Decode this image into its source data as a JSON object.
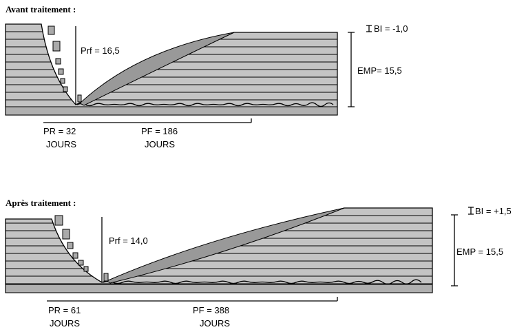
{
  "panels": [
    {
      "title": "Avant traitement :",
      "prf": "Prf = 16,5",
      "bi": "BI = -1,0",
      "emp": "EMP= 15,5",
      "pr": {
        "label": "PR  = 32",
        "unit": "JOURS"
      },
      "pf": {
        "label": "PF = 186",
        "unit": "JOURS"
      }
    },
    {
      "title": "Après traitement :",
      "prf": "Prf = 14,0",
      "bi": "BI = +1,5",
      "emp": "EMP = 15,5",
      "pr": {
        "label": "PR = 61",
        "unit": "JOURS"
      },
      "pf": {
        "label": "PF = 388",
        "unit": "JOURS"
      }
    }
  ]
}
